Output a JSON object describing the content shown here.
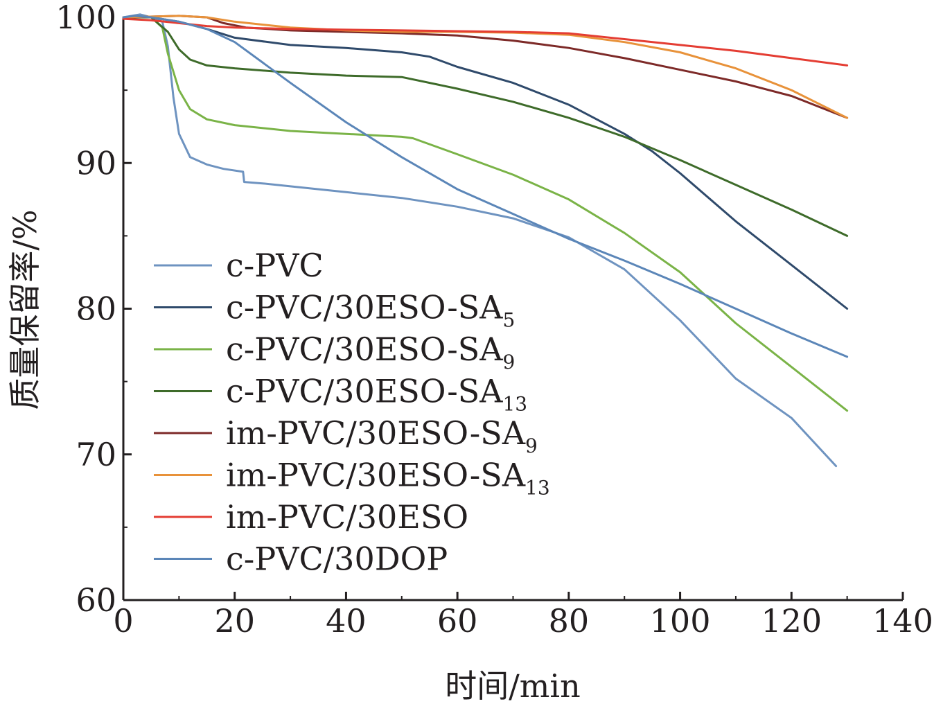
{
  "chart_data": {
    "type": "line",
    "xlabel": "时间/min",
    "ylabel": "质量保留率/%",
    "xlim": [
      0,
      140
    ],
    "ylim": [
      60,
      100
    ],
    "xticks": [
      0,
      20,
      40,
      60,
      80,
      100,
      120,
      140
    ],
    "yticks": [
      60,
      70,
      80,
      90,
      100
    ],
    "grid": false,
    "legend_position": "lower-left",
    "series": [
      {
        "name": "c-PVC",
        "name_main": "c-PVC",
        "name_sub": "",
        "color": "#6e93c0",
        "points": [
          [
            0,
            100
          ],
          [
            3,
            100.2
          ],
          [
            5,
            100
          ],
          [
            7,
            99.7
          ],
          [
            8,
            98
          ],
          [
            9,
            94.5
          ],
          [
            10,
            92
          ],
          [
            12,
            90.4
          ],
          [
            15,
            89.9
          ],
          [
            18,
            89.6
          ],
          [
            21.5,
            89.4
          ],
          [
            21.7,
            88.7
          ],
          [
            25,
            88.6
          ],
          [
            30,
            88.4
          ],
          [
            40,
            88
          ],
          [
            50,
            87.6
          ],
          [
            60,
            87
          ],
          [
            70,
            86.2
          ],
          [
            80,
            84.9
          ],
          [
            90,
            82.7
          ],
          [
            100,
            79.2
          ],
          [
            110,
            75.2
          ],
          [
            120,
            72.5
          ],
          [
            128,
            69.2
          ]
        ]
      },
      {
        "name": "c-PVC/30ESO-SA5",
        "name_main": "c-PVC/30ESO-SA",
        "name_sub": "5",
        "color": "#2f4a6b",
        "points": [
          [
            0,
            100
          ],
          [
            5,
            100
          ],
          [
            10,
            99.7
          ],
          [
            15,
            99.2
          ],
          [
            20,
            98.6
          ],
          [
            30,
            98.1
          ],
          [
            40,
            97.9
          ],
          [
            50,
            97.6
          ],
          [
            55,
            97.3
          ],
          [
            60,
            96.6
          ],
          [
            70,
            95.5
          ],
          [
            80,
            94
          ],
          [
            90,
            92
          ],
          [
            95,
            90.8
          ],
          [
            100,
            89.3
          ],
          [
            110,
            86
          ],
          [
            120,
            83
          ],
          [
            130,
            80
          ]
        ]
      },
      {
        "name": "c-PVC/30ESO-SA9",
        "name_main": "c-PVC/30ESO-SA",
        "name_sub": "9",
        "color": "#7ab347",
        "points": [
          [
            0,
            100
          ],
          [
            5,
            100
          ],
          [
            7,
            99.3
          ],
          [
            8,
            97.5
          ],
          [
            10,
            95
          ],
          [
            12,
            93.7
          ],
          [
            15,
            93
          ],
          [
            20,
            92.6
          ],
          [
            30,
            92.2
          ],
          [
            40,
            92
          ],
          [
            50,
            91.8
          ],
          [
            52,
            91.7
          ],
          [
            60,
            90.6
          ],
          [
            70,
            89.2
          ],
          [
            80,
            87.5
          ],
          [
            90,
            85.2
          ],
          [
            100,
            82.5
          ],
          [
            110,
            79
          ],
          [
            120,
            76
          ],
          [
            130,
            73
          ]
        ]
      },
      {
        "name": "c-PVC/30ESO-SA13",
        "name_main": "c-PVC/30ESO-SA",
        "name_sub": "13",
        "color": "#3e6b2a",
        "points": [
          [
            0,
            100
          ],
          [
            5,
            100
          ],
          [
            8,
            99
          ],
          [
            10,
            97.8
          ],
          [
            12,
            97.1
          ],
          [
            15,
            96.7
          ],
          [
            20,
            96.5
          ],
          [
            30,
            96.2
          ],
          [
            40,
            96
          ],
          [
            50,
            95.9
          ],
          [
            60,
            95.1
          ],
          [
            70,
            94.2
          ],
          [
            80,
            93.1
          ],
          [
            90,
            91.8
          ],
          [
            100,
            90.2
          ],
          [
            110,
            88.5
          ],
          [
            120,
            86.8
          ],
          [
            130,
            85
          ]
        ]
      },
      {
        "name": "im-PVC/30ESO-SA9",
        "name_main": "im-PVC/30ESO-SA",
        "name_sub": "9",
        "color": "#7d2a28",
        "points": [
          [
            0,
            100
          ],
          [
            10,
            100.1
          ],
          [
            15,
            100
          ],
          [
            18,
            99.6
          ],
          [
            22,
            99.3
          ],
          [
            30,
            99.1
          ],
          [
            40,
            99
          ],
          [
            50,
            98.9
          ],
          [
            60,
            98.75
          ],
          [
            70,
            98.4
          ],
          [
            80,
            97.9
          ],
          [
            90,
            97.2
          ],
          [
            100,
            96.4
          ],
          [
            110,
            95.6
          ],
          [
            120,
            94.6
          ],
          [
            130,
            93.1
          ]
        ]
      },
      {
        "name": "im-PVC/30ESO-SA13",
        "name_main": "im-PVC/30ESO-SA",
        "name_sub": "13",
        "color": "#e8923a",
        "points": [
          [
            0,
            100
          ],
          [
            10,
            100.1
          ],
          [
            15,
            100
          ],
          [
            20,
            99.7
          ],
          [
            30,
            99.3
          ],
          [
            40,
            99.1
          ],
          [
            50,
            99
          ],
          [
            60,
            99
          ],
          [
            70,
            98.95
          ],
          [
            80,
            98.8
          ],
          [
            90,
            98.3
          ],
          [
            100,
            97.6
          ],
          [
            110,
            96.5
          ],
          [
            120,
            95
          ],
          [
            130,
            93.1
          ]
        ]
      },
      {
        "name": "im-PVC/30ESO",
        "name_main": "im-PVC/30ESO",
        "name_sub": "",
        "color": "#e43d33",
        "points": [
          [
            0,
            99.9
          ],
          [
            5,
            99.8
          ],
          [
            10,
            99.6
          ],
          [
            15,
            99.4
          ],
          [
            20,
            99.3
          ],
          [
            30,
            99.2
          ],
          [
            40,
            99.15
          ],
          [
            50,
            99.1
          ],
          [
            60,
            99.05
          ],
          [
            70,
            99
          ],
          [
            80,
            98.9
          ],
          [
            90,
            98.5
          ],
          [
            100,
            98.1
          ],
          [
            110,
            97.7
          ],
          [
            120,
            97.2
          ],
          [
            130,
            96.7
          ]
        ]
      },
      {
        "name": "c-PVC/30DOP",
        "name_main": "c-PVC/30DOP",
        "name_sub": "",
        "color": "#5b86b8",
        "points": [
          [
            0,
            100
          ],
          [
            2,
            100.1
          ],
          [
            5,
            100
          ],
          [
            10,
            99.7
          ],
          [
            15,
            99.2
          ],
          [
            20,
            98.3
          ],
          [
            30,
            95.5
          ],
          [
            40,
            92.8
          ],
          [
            50,
            90.4
          ],
          [
            60,
            88.2
          ],
          [
            70,
            86.5
          ],
          [
            80,
            84.8
          ],
          [
            90,
            83.3
          ],
          [
            100,
            81.7
          ],
          [
            110,
            80
          ],
          [
            120,
            78.3
          ],
          [
            130,
            76.7
          ]
        ]
      }
    ]
  }
}
